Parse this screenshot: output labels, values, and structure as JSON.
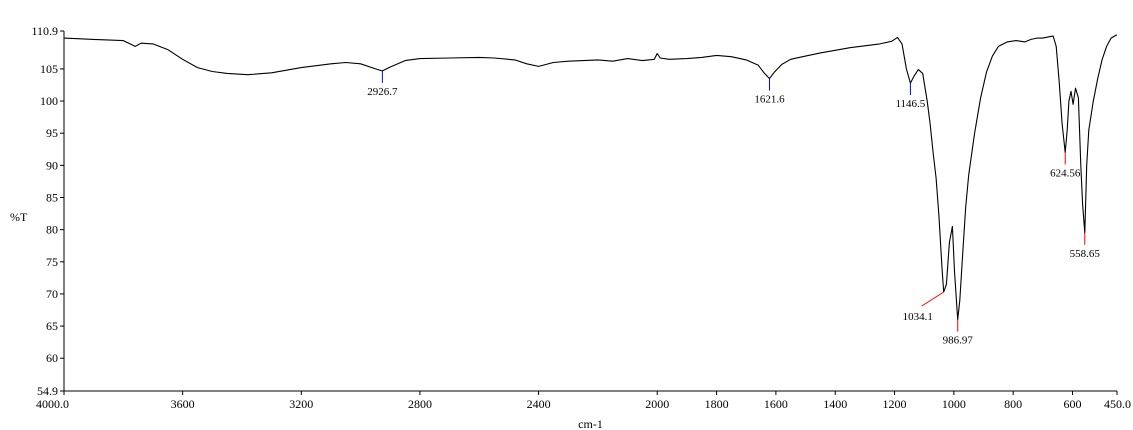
{
  "chart_data": {
    "type": "line",
    "title": "",
    "xlabel": "cm-1",
    "ylabel": "%T",
    "xlim": [
      4000.0,
      450.0
    ],
    "ylim": [
      54.9,
      110.9
    ],
    "x_reversed": true,
    "grid": false,
    "line_color": "#000000",
    "x_tick_labels": [
      {
        "value": 4000,
        "label": "4000.0"
      },
      {
        "value": 3600,
        "label": "3600"
      },
      {
        "value": 3200,
        "label": "3200"
      },
      {
        "value": 2800,
        "label": "2800"
      },
      {
        "value": 2400,
        "label": "2400"
      },
      {
        "value": 2000,
        "label": "2000"
      },
      {
        "value": 1800,
        "label": "1800"
      },
      {
        "value": 1600,
        "label": "1600"
      },
      {
        "value": 1400,
        "label": "1400"
      },
      {
        "value": 1200,
        "label": "1200"
      },
      {
        "value": 1000,
        "label": "1000"
      },
      {
        "value": 800,
        "label": "800"
      },
      {
        "value": 600,
        "label": "600"
      },
      {
        "value": 450,
        "label": "450.0"
      }
    ],
    "y_tick_labels": [
      {
        "value": 110.9,
        "label": "110.9"
      },
      {
        "value": 105,
        "label": "105"
      },
      {
        "value": 100,
        "label": "100"
      },
      {
        "value": 95,
        "label": "95"
      },
      {
        "value": 90,
        "label": "90"
      },
      {
        "value": 85,
        "label": "85"
      },
      {
        "value": 80,
        "label": "80"
      },
      {
        "value": 75,
        "label": "75"
      },
      {
        "value": 70,
        "label": "70"
      },
      {
        "value": 65,
        "label": "65"
      },
      {
        "value": 60,
        "label": "60"
      },
      {
        "value": 54.9,
        "label": "54.9"
      }
    ],
    "series": [
      {
        "points": [
          [
            4000,
            109.8
          ],
          [
            3900,
            109.6
          ],
          [
            3800,
            109.4
          ],
          [
            3760,
            108.5
          ],
          [
            3740,
            109.0
          ],
          [
            3700,
            108.9
          ],
          [
            3650,
            108.0
          ],
          [
            3600,
            106.5
          ],
          [
            3550,
            105.2
          ],
          [
            3500,
            104.6
          ],
          [
            3450,
            104.3
          ],
          [
            3380,
            104.1
          ],
          [
            3300,
            104.4
          ],
          [
            3200,
            105.2
          ],
          [
            3100,
            105.8
          ],
          [
            3050,
            106.0
          ],
          [
            3000,
            105.8
          ],
          [
            2950,
            105.0
          ],
          [
            2926.7,
            104.7
          ],
          [
            2900,
            105.3
          ],
          [
            2850,
            106.3
          ],
          [
            2800,
            106.6
          ],
          [
            2700,
            106.7
          ],
          [
            2600,
            106.8
          ],
          [
            2550,
            106.7
          ],
          [
            2480,
            106.4
          ],
          [
            2440,
            105.8
          ],
          [
            2400,
            105.4
          ],
          [
            2350,
            106.0
          ],
          [
            2300,
            106.2
          ],
          [
            2250,
            106.3
          ],
          [
            2200,
            106.4
          ],
          [
            2150,
            106.2
          ],
          [
            2100,
            106.6
          ],
          [
            2050,
            106.3
          ],
          [
            2010,
            106.5
          ],
          [
            2000,
            107.4
          ],
          [
            1990,
            106.7
          ],
          [
            1960,
            106.5
          ],
          [
            1900,
            106.6
          ],
          [
            1850,
            106.8
          ],
          [
            1800,
            107.1
          ],
          [
            1750,
            106.9
          ],
          [
            1700,
            106.4
          ],
          [
            1660,
            105.6
          ],
          [
            1640,
            104.4
          ],
          [
            1621.6,
            103.5
          ],
          [
            1605,
            104.5
          ],
          [
            1580,
            105.7
          ],
          [
            1550,
            106.5
          ],
          [
            1500,
            107.0
          ],
          [
            1450,
            107.5
          ],
          [
            1400,
            107.9
          ],
          [
            1350,
            108.3
          ],
          [
            1300,
            108.6
          ],
          [
            1250,
            108.9
          ],
          [
            1210,
            109.3
          ],
          [
            1190,
            109.9
          ],
          [
            1175,
            108.9
          ],
          [
            1160,
            105.0
          ],
          [
            1146.5,
            102.8
          ],
          [
            1135,
            103.8
          ],
          [
            1120,
            104.9
          ],
          [
            1105,
            104.3
          ],
          [
            1090,
            100.0
          ],
          [
            1080,
            96.5
          ],
          [
            1070,
            92.0
          ],
          [
            1060,
            88.0
          ],
          [
            1050,
            82.0
          ],
          [
            1040,
            74.0
          ],
          [
            1034.1,
            70.3
          ],
          [
            1025,
            71.5
          ],
          [
            1015,
            78.0
          ],
          [
            1005,
            80.5
          ],
          [
            998,
            73.5
          ],
          [
            986.97,
            66.0
          ],
          [
            980,
            69.0
          ],
          [
            970,
            76.5
          ],
          [
            960,
            83.5
          ],
          [
            950,
            88.5
          ],
          [
            930,
            95.0
          ],
          [
            910,
            100.5
          ],
          [
            890,
            104.5
          ],
          [
            870,
            107.0
          ],
          [
            850,
            108.5
          ],
          [
            820,
            109.2
          ],
          [
            790,
            109.4
          ],
          [
            760,
            109.2
          ],
          [
            740,
            109.6
          ],
          [
            720,
            109.8
          ],
          [
            700,
            109.8
          ],
          [
            680,
            110.0
          ],
          [
            665,
            110.1
          ],
          [
            655,
            108.5
          ],
          [
            645,
            103.0
          ],
          [
            635,
            96.5
          ],
          [
            624.56,
            92.0
          ],
          [
            618,
            95.5
          ],
          [
            612,
            100.0
          ],
          [
            605,
            101.5
          ],
          [
            598,
            99.5
          ],
          [
            590,
            102.0
          ],
          [
            580,
            100.5
          ],
          [
            572,
            90.0
          ],
          [
            566,
            84.0
          ],
          [
            558.65,
            79.5
          ],
          [
            552,
            90.0
          ],
          [
            545,
            95.5
          ],
          [
            530,
            100.0
          ],
          [
            515,
            103.5
          ],
          [
            500,
            106.5
          ],
          [
            485,
            108.5
          ],
          [
            470,
            109.8
          ],
          [
            455,
            110.2
          ],
          [
            450,
            110.3
          ]
        ]
      }
    ],
    "peak_labels": [
      {
        "x": 2926.7,
        "y": 104.7,
        "label": "2926.7",
        "color": "#0000ff"
      },
      {
        "x": 1621.6,
        "y": 103.5,
        "label": "1621.6",
        "color": "#0000ff"
      },
      {
        "x": 1146.5,
        "y": 102.8,
        "label": "1146.5",
        "color": "#0000ff"
      },
      {
        "x": 1034.1,
        "y": 70.3,
        "label": "1034.1",
        "color": "#ff0000"
      },
      {
        "x": 986.97,
        "y": 66.0,
        "label": "986.97",
        "color": "#ff0000"
      },
      {
        "x": 624.56,
        "y": 92.0,
        "label": "624.56",
        "color": "#ff0000"
      },
      {
        "x": 558.65,
        "y": 79.5,
        "label": "558.65",
        "color": "#ff0000"
      }
    ]
  }
}
